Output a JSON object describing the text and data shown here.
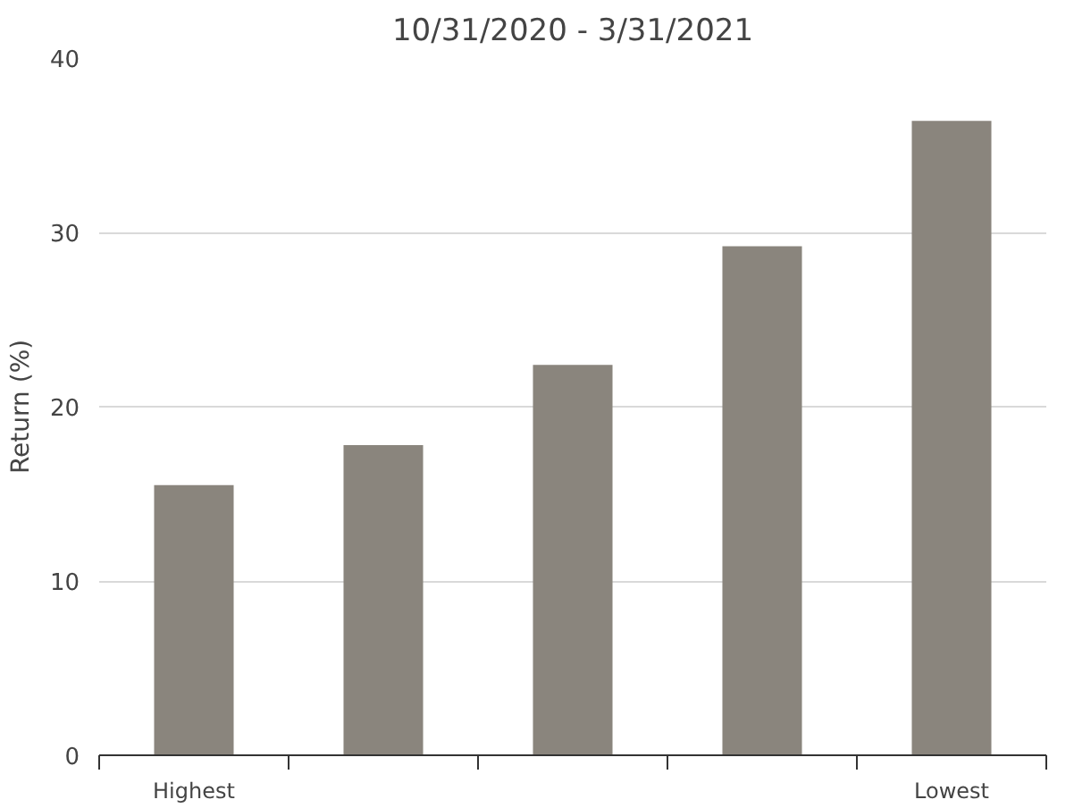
{
  "chart_data": {
    "type": "bar",
    "title": "10/31/2020 - 3/31/2021",
    "ylabel": "Return (%)",
    "categories": [
      "Highest",
      null,
      null,
      null,
      "Lowest"
    ],
    "values": [
      15.5,
      17.8,
      22.4,
      29.2,
      36.4
    ],
    "color": "#8a857d",
    "ylim": [
      0,
      40
    ],
    "yticks": [
      0,
      10,
      20,
      30,
      40
    ],
    "grid": "y"
  }
}
